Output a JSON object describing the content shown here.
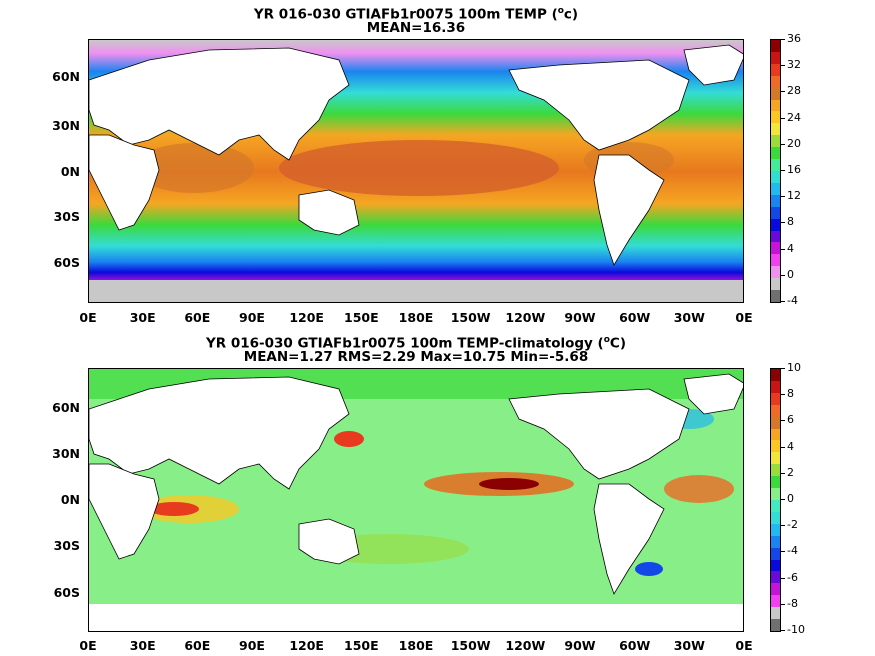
{
  "panels": [
    {
      "title_line1": "YR 016-030 GTIAFb1r0075 100m TEMP (",
      "title_sup": "o",
      "title_unit_end": "c)",
      "title_line2": "MEAN=16.36",
      "lat_labels": [
        "60N",
        "30N",
        "0N",
        "30S",
        "60S"
      ],
      "lon_labels": [
        "0E",
        "30E",
        "60E",
        "90E",
        "120E",
        "150E",
        "180E",
        "150W",
        "120W",
        "90W",
        "60W",
        "30W",
        "0E"
      ],
      "colorbar": {
        "labels": [
          "36",
          "32",
          "28",
          "24",
          "20",
          "16",
          "12",
          "8",
          "4",
          "0",
          "-4"
        ],
        "colors": [
          "#8b0000",
          "#c81414",
          "#e83a1e",
          "#ee6a26",
          "#d4782a",
          "#f5a623",
          "#f9c824",
          "#f0e63c",
          "#9bdc3c",
          "#3cd93c",
          "#44e99a",
          "#33ddd6",
          "#22b8f0",
          "#1a84f0",
          "#1448e6",
          "#0a0adc",
          "#6a0ad8",
          "#c414d8",
          "#f040f0",
          "#f090f0",
          "#c8c8c8",
          "#707070"
        ]
      }
    },
    {
      "title_line1": "YR 016-030 GTIAFb1r0075 100m TEMP-climatology (",
      "title_sup": "o",
      "title_unit_end": "C)",
      "title_line2": "MEAN=1.27   RMS=2.29   Max=10.75   Min=-5.68",
      "lat_labels": [
        "60N",
        "30N",
        "0N",
        "30S",
        "60S"
      ],
      "lon_labels": [
        "0E",
        "30E",
        "60E",
        "90E",
        "120E",
        "150E",
        "180E",
        "150W",
        "120W",
        "90W",
        "60W",
        "30W",
        "0E"
      ],
      "colorbar": {
        "labels": [
          "10",
          "8",
          "6",
          "4",
          "2",
          "0",
          "-2",
          "-4",
          "-6",
          "-8",
          "-10"
        ],
        "colors": [
          "#8b0000",
          "#c81414",
          "#e83a1e",
          "#ee6a26",
          "#d4782a",
          "#f5a623",
          "#f9c824",
          "#f0e63c",
          "#9bdc3c",
          "#3cd93c",
          "#88ee88",
          "#44e9c0",
          "#33ddd6",
          "#22b8f0",
          "#1a84f0",
          "#1448e6",
          "#0a0adc",
          "#6a0ad8",
          "#c414d8",
          "#f040f0",
          "#c8c8c8",
          "#707070"
        ]
      }
    }
  ]
}
